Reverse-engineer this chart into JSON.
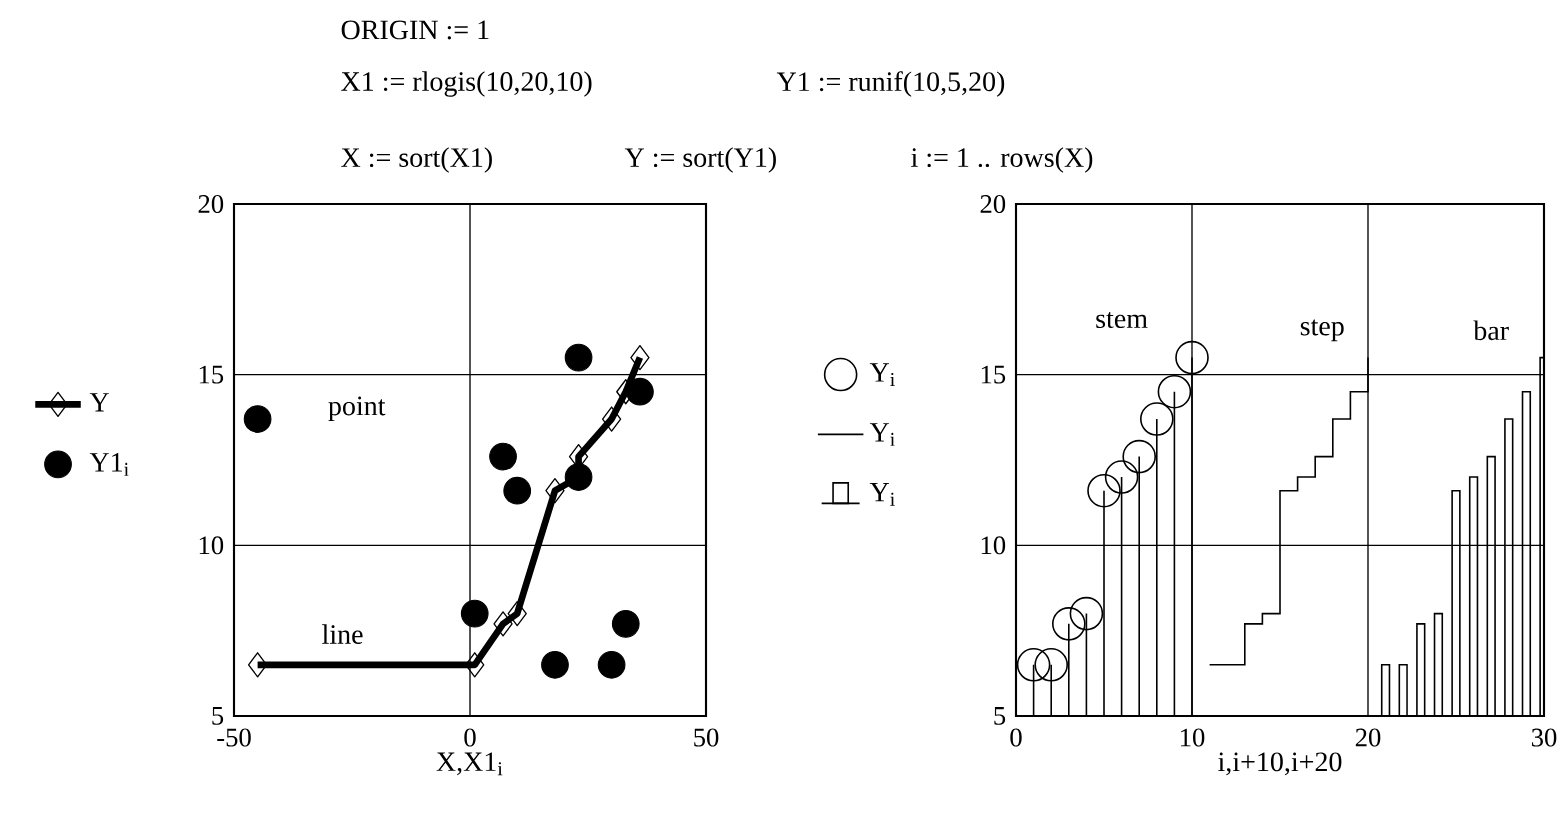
{
  "chart_data": [
    {
      "type": "other",
      "annotations": [
        "ORIGIN := 1",
        "X1 := rlogis(10,20,10)",
        "Y1 := runif(10,5,20)",
        "X := sort(X1)",
        "Y := sort(Y1)",
        "i := 1 .. rows(X)"
      ]
    },
    {
      "type": "line",
      "xlabel": "X,X1$_{i}$",
      "xlim": [
        -50,
        50
      ],
      "ylim": [
        5,
        20
      ],
      "xticks": [
        -50,
        0,
        50
      ],
      "yticks": [
        5,
        10,
        15,
        20
      ],
      "grid": true,
      "legend": "left",
      "annotations": [
        "point",
        "line"
      ],
      "series": [
        {
          "name": "Y",
          "type": "line",
          "marker": "diamond",
          "color": "#000000",
          "x": [
            -45,
            1,
            7,
            10,
            18,
            23,
            23,
            30,
            33,
            36
          ],
          "values": [
            6.5,
            6.5,
            7.7,
            8.0,
            11.6,
            12.0,
            12.6,
            13.7,
            14.5,
            15.5
          ]
        },
        {
          "name": "Y1$_{i}$",
          "type": "scatter",
          "marker": "circle",
          "color": "#000000",
          "x": [
            -45,
            1,
            7,
            10,
            23,
            18,
            30,
            33,
            36,
            23
          ],
          "values": [
            13.7,
            8.0,
            12.6,
            11.6,
            15.5,
            6.5,
            6.5,
            7.7,
            14.5,
            12.0
          ]
        }
      ]
    },
    {
      "type": "line",
      "xlabel": "i,i+10,i+20",
      "xlim": [
        0,
        30
      ],
      "ylim": [
        5,
        20
      ],
      "xticks": [
        0,
        10,
        20,
        30
      ],
      "yticks": [
        5,
        10,
        15,
        20
      ],
      "grid": true,
      "legend": "left",
      "annotations": [
        "stem",
        "step",
        "bar"
      ],
      "series": [
        {
          "name": "Y$_{i}$",
          "type": "lollipop",
          "marker": "circle",
          "color": "#000000",
          "x": [
            1,
            2,
            3,
            4,
            5,
            6,
            7,
            8,
            9,
            10
          ],
          "values": [
            6.5,
            6.5,
            7.7,
            8.0,
            11.6,
            12.0,
            12.6,
            13.7,
            14.5,
            15.5
          ]
        },
        {
          "name": "Y$_{i}$",
          "type": "step",
          "color": "#000000",
          "x": [
            11,
            12,
            13,
            14,
            15,
            16,
            17,
            18,
            19,
            20
          ],
          "values": [
            6.5,
            6.5,
            7.7,
            8.0,
            11.6,
            12.0,
            12.6,
            13.7,
            14.5,
            15.5
          ]
        },
        {
          "name": "Y$_{i}$",
          "type": "bar",
          "color": "#000000",
          "x": [
            21,
            22,
            23,
            24,
            25,
            26,
            27,
            28,
            29,
            30
          ],
          "values": [
            6.5,
            6.5,
            7.7,
            8.0,
            11.6,
            12.0,
            12.6,
            13.7,
            14.5,
            15.5
          ]
        }
      ]
    }
  ]
}
